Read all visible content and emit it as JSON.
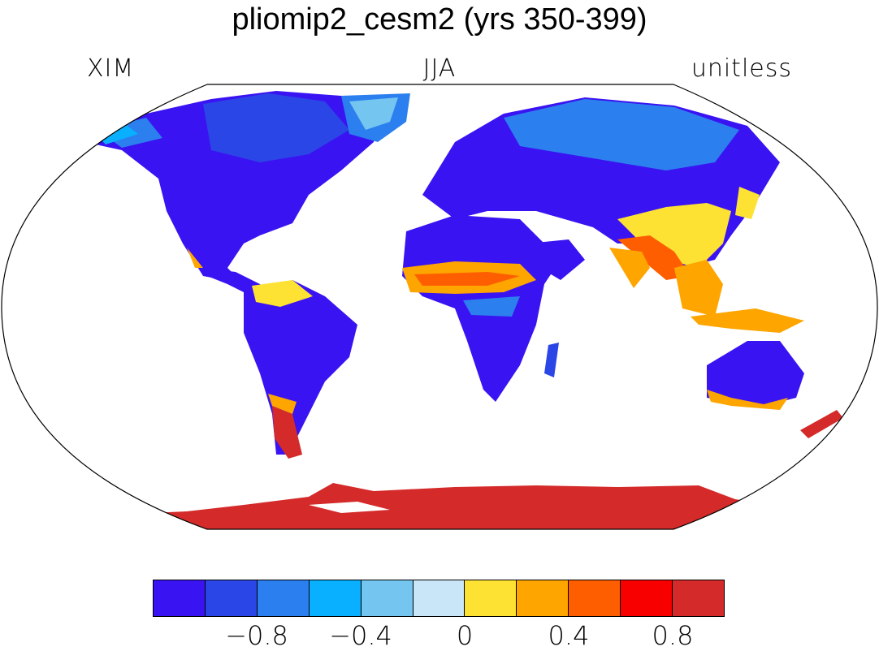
{
  "title": "pliomip2_cesm2 (yrs 350-399)",
  "left_label": "XIM",
  "center_label": "JJA",
  "right_label": "unitless",
  "colorbar": {
    "colors": [
      "#3a13f2",
      "#2b46e6",
      "#2c7fee",
      "#08b0ff",
      "#74c5f0",
      "#c9e6f8",
      "#fde233",
      "#fea500",
      "#fe5e00",
      "#f80000",
      "#d42a2a"
    ],
    "tick_labels": [
      {
        "text": "−0.8",
        "index": 1
      },
      {
        "text": "−0.4",
        "index": 3
      },
      {
        "text": "0",
        "index": 5
      },
      {
        "text": "0.4",
        "index": 7
      },
      {
        "text": "0.8",
        "index": 9
      }
    ]
  }
}
